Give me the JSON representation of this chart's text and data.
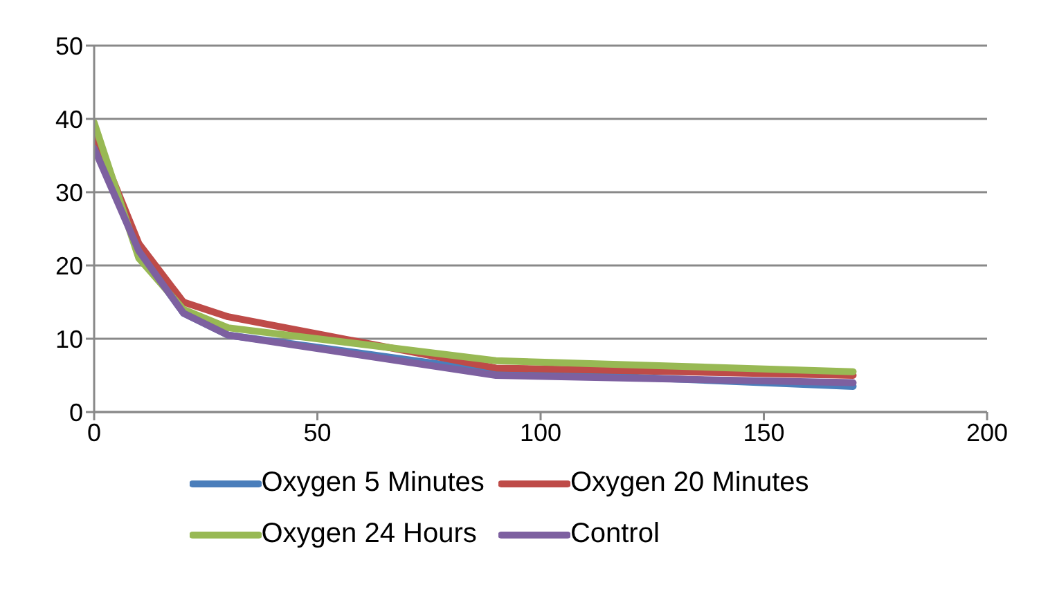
{
  "chart_data": {
    "type": "line",
    "x": [
      0,
      10,
      20,
      30,
      90,
      170
    ],
    "series": [
      {
        "name": "Oxygen 5 Minutes",
        "color": "#4a7ebb",
        "values": [
          36.5,
          22,
          13.5,
          10.5,
          5.5,
          3.5
        ]
      },
      {
        "name": "Oxygen 20 Minutes",
        "color": "#be4b48",
        "values": [
          38,
          23,
          15,
          13,
          6,
          5
        ]
      },
      {
        "name": "Oxygen 24 Hours",
        "color": "#98b954",
        "values": [
          39.5,
          21,
          14,
          11.5,
          7,
          5.5
        ]
      },
      {
        "name": "Control",
        "color": "#7d60a0",
        "values": [
          36,
          22,
          13.5,
          10.5,
          5,
          4
        ]
      }
    ],
    "xlim": [
      0,
      200
    ],
    "xticks": [
      0,
      50,
      100,
      150,
      200
    ],
    "ylim": [
      0,
      50
    ],
    "yticks": [
      0,
      10,
      20,
      30,
      40,
      50
    ],
    "grid": "y",
    "legend": "bottom",
    "marker": "none",
    "line_style": "solid"
  }
}
